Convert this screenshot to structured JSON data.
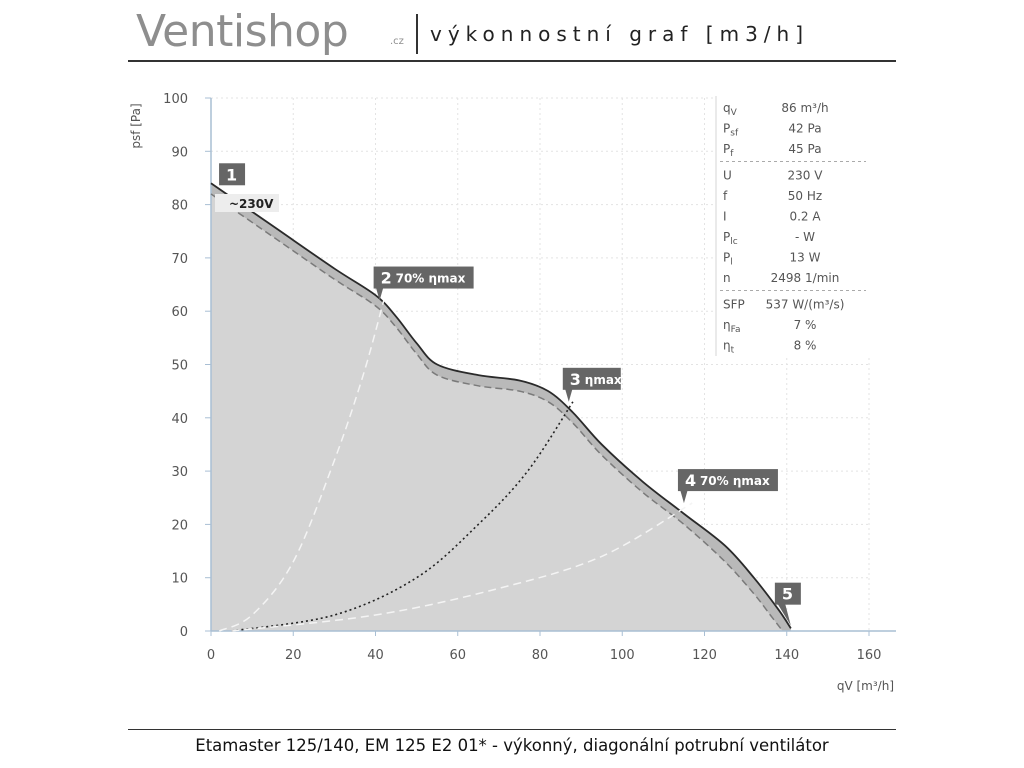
{
  "header": {
    "brand": "Ventishop",
    "brand_suffix": ".cz",
    "title": "výkonnostní graf [m3/h]"
  },
  "footer": {
    "product": "Etamaster 125/140, EM 125 E2 01* - výkonný, diagonální potrubní ventilátor"
  },
  "chart_data": {
    "type": "line",
    "title": "",
    "xlabel": "qV [m³/h]",
    "ylabel": "psf [Pa]",
    "xlim": [
      0,
      160
    ],
    "ylim": [
      0,
      100
    ],
    "x_ticks": [
      "0",
      "20",
      "40",
      "60",
      "80",
      "100",
      "120",
      "140",
      "160"
    ],
    "y_ticks": [
      "0",
      "10",
      "20",
      "30",
      "40",
      "50",
      "60",
      "70",
      "80",
      "90",
      "100"
    ],
    "grid": true,
    "series": [
      {
        "name": "~230V",
        "style": "solid",
        "x": [
          0,
          15,
          30,
          40,
          45,
          50,
          55,
          65,
          75,
          82,
          88,
          95,
          105,
          115,
          125,
          132,
          138,
          141
        ],
        "y": [
          84,
          76,
          68,
          63,
          59,
          54,
          50,
          48,
          47,
          45,
          41,
          35,
          28,
          22,
          16,
          10,
          4,
          0.5
        ]
      },
      {
        "style": "dashed",
        "x": [
          0,
          15,
          30,
          40,
          45,
          50,
          55,
          65,
          75,
          82,
          88,
          95,
          105,
          115,
          125,
          132,
          136,
          139
        ],
        "y": [
          82,
          74,
          66,
          61,
          57,
          52,
          48,
          46,
          45,
          43,
          39,
          33,
          26,
          20,
          13,
          7,
          3,
          0
        ]
      },
      {
        "style": "dashed-light",
        "x": [
          2,
          10,
          20,
          30,
          37,
          42
        ],
        "y": [
          0,
          3,
          13,
          32,
          48,
          62
        ]
      },
      {
        "style": "dotted",
        "x": [
          5,
          30,
          50,
          65,
          77,
          88
        ],
        "y": [
          0,
          3,
          10,
          20,
          30,
          43
        ]
      },
      {
        "style": "dashed-light",
        "x": [
          5,
          40,
          70,
          95,
          117
        ],
        "y": [
          0,
          3,
          8,
          14,
          24
        ]
      }
    ],
    "points": [
      {
        "label": "1",
        "text": "",
        "x": 0.5,
        "y": 84
      },
      {
        "label": "2",
        "text": "70% ηmax",
        "x": 41,
        "y": 62
      },
      {
        "label": "3",
        "text": "ηmax",
        "x": 87,
        "y": 43
      },
      {
        "label": "4",
        "text": "70% ηmax",
        "x": 115,
        "y": 24
      },
      {
        "label": "5",
        "text": "",
        "x": 141,
        "y": 1
      }
    ],
    "curve_label": "~230V"
  },
  "info_panel": {
    "groups": [
      [
        {
          "sym": "q",
          "sub": "V",
          "value": "86 m³/h"
        },
        {
          "sym": "P",
          "sub": "sf",
          "value": "42 Pa"
        },
        {
          "sym": "P",
          "sub": "f",
          "value": "45 Pa"
        }
      ],
      [
        {
          "sym": "U",
          "sub": "",
          "value": "230 V"
        },
        {
          "sym": "f",
          "sub": "",
          "value": "50 Hz"
        },
        {
          "sym": "I",
          "sub": "",
          "value": "0.2 A"
        },
        {
          "sym": "P",
          "sub": "lc",
          "value": "- W"
        },
        {
          "sym": "P",
          "sub": "l",
          "value": "13 W"
        },
        {
          "sym": "n",
          "sub": "",
          "value": "2498 1/min"
        }
      ],
      [
        {
          "sym": "SFP",
          "sub": "",
          "value": "537 W/(m³/s)"
        },
        {
          "sym": "η",
          "sub": "Fa",
          "value": "7 %"
        },
        {
          "sym": "η",
          "sub": "t",
          "value": "8 %"
        }
      ]
    ]
  },
  "colors": {
    "fill": "#d4d4d4",
    "curve": "#2a2a2a",
    "dashed_curve": "#7a7a7a",
    "badge": "#666666",
    "grid": "#e3e3e3",
    "axis": "#a9bfd4"
  }
}
